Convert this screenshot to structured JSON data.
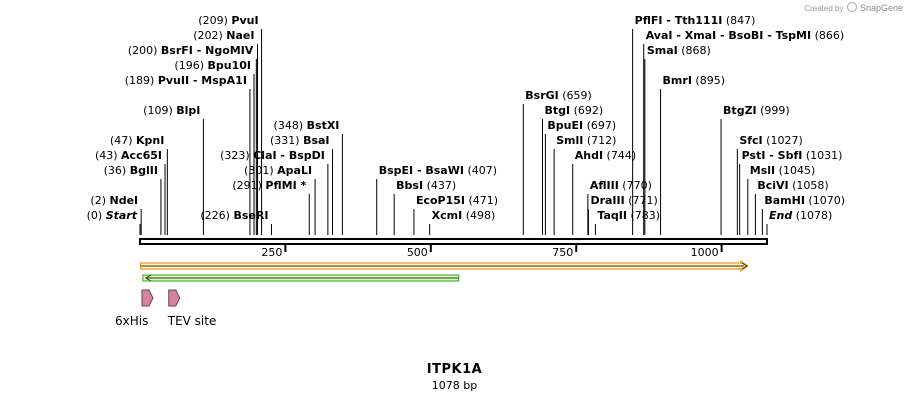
{
  "header": {
    "credit_text": "Created by",
    "brand": "SnapGene"
  },
  "sequence": {
    "name": "ITPK1A",
    "length_label": "1078 bp",
    "length": 1078
  },
  "ruler": {
    "ticks": [
      250,
      500,
      750,
      1000
    ]
  },
  "colors": {
    "orf_border": "#ee9a28",
    "orf_fill": "#fff3c0",
    "primer_border": "#55b33a",
    "primer_fill": "#d8f3c4",
    "feature_fill": "#d5859b",
    "feature_border": "#7d3a52",
    "text": "#000000"
  },
  "features": [
    {
      "name": "6xHis",
      "pos": 12,
      "shape": "arrow-right"
    },
    {
      "name": "TEV site",
      "pos": 58,
      "shape": "arrow-right"
    }
  ],
  "orf": {
    "start": 1,
    "end": 1045,
    "direction": "forward"
  },
  "primer": {
    "start": 5,
    "end": 548,
    "direction": "reverse"
  },
  "sites": [
    {
      "parts": [
        "NdeI"
      ],
      "number": "(2)",
      "pos": 2,
      "side": "left",
      "row": 0
    },
    {
      "parts": [
        "Start"
      ],
      "number": "(0)",
      "pos": 0,
      "side": "left",
      "row": -1,
      "italic": true
    },
    {
      "parts": [
        "BglII"
      ],
      "number": "(36)",
      "pos": 36,
      "side": "left",
      "row": 2
    },
    {
      "parts": [
        "Acc65I"
      ],
      "number": "(43)",
      "pos": 43,
      "side": "left",
      "row": 3
    },
    {
      "parts": [
        "KpnI"
      ],
      "number": "(47)",
      "pos": 47,
      "side": "left",
      "row": 4
    },
    {
      "parts": [
        "BlpI"
      ],
      "number": "(109)",
      "pos": 109,
      "side": "left",
      "row": 6
    },
    {
      "parts": [
        "PvuII",
        "MspA1I"
      ],
      "number": "(189)",
      "pos": 189,
      "side": "left",
      "row": 8
    },
    {
      "parts": [
        "Bpu10I"
      ],
      "number": "(196)",
      "pos": 196,
      "side": "left",
      "row": 9
    },
    {
      "parts": [
        "BsrFI",
        "NgoMIV"
      ],
      "number": "(200)",
      "pos": 200,
      "side": "left",
      "row": 10
    },
    {
      "parts": [
        "NaeI"
      ],
      "number": "(202)",
      "pos": 202,
      "side": "left",
      "row": 11
    },
    {
      "parts": [
        "PvuI"
      ],
      "number": "(209)",
      "pos": 209,
      "side": "left",
      "row": 12
    },
    {
      "parts": [
        "BseRI"
      ],
      "number": "(226)",
      "pos": 226,
      "side": "left",
      "row": -1
    },
    {
      "parts": [
        "PflMI *"
      ],
      "number": "(291)",
      "pos": 291,
      "side": "left",
      "row": 1
    },
    {
      "parts": [
        "ApaLI"
      ],
      "number": "(301)",
      "pos": 301,
      "side": "left",
      "row": 2
    },
    {
      "parts": [
        "ClaI",
        "BspDI"
      ],
      "number": "(323)",
      "pos": 323,
      "side": "left",
      "row": 3
    },
    {
      "parts": [
        "BsaI"
      ],
      "number": "(331)",
      "pos": 331,
      "side": "left",
      "row": 4
    },
    {
      "parts": [
        "BstXI"
      ],
      "number": "(348)",
      "pos": 348,
      "side": "left",
      "row": 5
    },
    {
      "parts": [
        "XcmI"
      ],
      "number": "(498)",
      "pos": 498,
      "side": "right",
      "row": -1
    },
    {
      "parts": [
        "EcoP15I"
      ],
      "number": "(471)",
      "pos": 471,
      "side": "right",
      "row": 0
    },
    {
      "parts": [
        "BbsI"
      ],
      "number": "(437)",
      "pos": 437,
      "side": "right",
      "row": 1
    },
    {
      "parts": [
        "BspEI",
        "BsaWI"
      ],
      "number": "(407)",
      "pos": 407,
      "side": "right",
      "row": 2
    },
    {
      "parts": [
        "BsrGI"
      ],
      "number": "(659)",
      "pos": 659,
      "side": "right",
      "row": 7
    },
    {
      "parts": [
        "BtgI"
      ],
      "number": "(692)",
      "pos": 692,
      "side": "right",
      "row": 6
    },
    {
      "parts": [
        "BpuEI"
      ],
      "number": "(697)",
      "pos": 697,
      "side": "right",
      "row": 5
    },
    {
      "parts": [
        "SmlI"
      ],
      "number": "(712)",
      "pos": 712,
      "side": "right",
      "row": 4
    },
    {
      "parts": [
        "AhdI"
      ],
      "number": "(744)",
      "pos": 744,
      "side": "right",
      "row": 3
    },
    {
      "parts": [
        "AflIII"
      ],
      "number": "(770)",
      "pos": 770,
      "side": "right",
      "row": 1
    },
    {
      "parts": [
        "DraIII"
      ],
      "number": "(771)",
      "pos": 771,
      "side": "right",
      "row": 0
    },
    {
      "parts": [
        "TaqII"
      ],
      "number": "(783)",
      "pos": 783,
      "side": "right",
      "row": -1
    },
    {
      "parts": [
        "PflFI",
        "Tth111I"
      ],
      "number": "(847)",
      "pos": 847,
      "side": "right",
      "row": 12
    },
    {
      "parts": [
        "AvaI",
        "XmaI",
        "BsoBI",
        "TspMI"
      ],
      "number": "(866)",
      "pos": 866,
      "side": "right",
      "row": 11
    },
    {
      "parts": [
        "SmaI"
      ],
      "number": "(868)",
      "pos": 868,
      "side": "right",
      "row": 10
    },
    {
      "parts": [
        "BmrI"
      ],
      "number": "(895)",
      "pos": 895,
      "side": "right",
      "row": 8
    },
    {
      "parts": [
        "BtgZI"
      ],
      "number": "(999)",
      "pos": 999,
      "side": "right",
      "row": 6
    },
    {
      "parts": [
        "SfcI"
      ],
      "number": "(1027)",
      "pos": 1027,
      "side": "right",
      "row": 4
    },
    {
      "parts": [
        "PstI",
        "SbfI"
      ],
      "number": "(1031)",
      "pos": 1031,
      "side": "right",
      "row": 3
    },
    {
      "parts": [
        "MslI"
      ],
      "number": "(1045)",
      "pos": 1045,
      "side": "right",
      "row": 2
    },
    {
      "parts": [
        "BciVI"
      ],
      "number": "(1058)",
      "pos": 1058,
      "side": "right",
      "row": 1
    },
    {
      "parts": [
        "BamHI"
      ],
      "number": "(1070)",
      "pos": 1070,
      "side": "right",
      "row": 0
    },
    {
      "parts": [
        "End"
      ],
      "number": "(1078)",
      "pos": 1078,
      "side": "right",
      "row": -1,
      "italic": true
    }
  ]
}
